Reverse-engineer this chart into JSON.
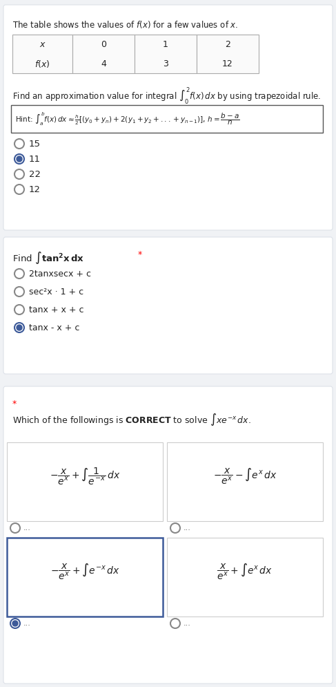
{
  "bg_color": "#f0f2f5",
  "card_color": "#ffffff",
  "title_text": "The table shows the values of $f(x)$ for a few values of $x$.",
  "table_headers": [
    "$x$",
    "0",
    "1",
    "2"
  ],
  "table_row": [
    "$f(x)$",
    "4",
    "3",
    "12"
  ],
  "question1_text": "Find an approximation value for integral $\\int_0^2 f(x)\\, dx$ by using trapezoidal rule.",
  "hint_text": "Hint: $\\int_a^b f(x)\\, dx \\approx \\frac{h}{2}[(y_0+y_n)+2(y_1+y_2+...+y_{n-1})]$, $h=\\dfrac{b-a}{n}$",
  "q1_options": [
    "15",
    "11",
    "22",
    "12"
  ],
  "q1_selected": 1,
  "question2_label": "Find $\\int \\mathbf{tan^2x}\\, \\mathbf{dx}$",
  "question2_star": "*",
  "q2_options": [
    "2tanxsecx + c",
    "sec²x · 1 + c",
    "tanx + x + c",
    "tanx - x + c"
  ],
  "q2_selected": 3,
  "question3_star": "*",
  "question3_text": "Which of the followings is $\\mathbf{CORRECT}$ to solve $\\int xe^{-x}\\, dx$.",
  "q3_options": [
    "$-\\dfrac{x}{e^x}+\\int\\dfrac{1}{e^{-x}}\\, dx$",
    "$-\\dfrac{x}{e^x}-\\int e^x\\, dx$",
    "$-\\dfrac{x}{e^x}+\\int e^{-x}\\, dx$",
    "$\\dfrac{x}{e^x}+\\int e^x\\, dx$"
  ],
  "q3_selected": 2,
  "selected_color": "#3d5a99",
  "border_color": "#c8cdd5",
  "selected_border": "#3d5a99"
}
